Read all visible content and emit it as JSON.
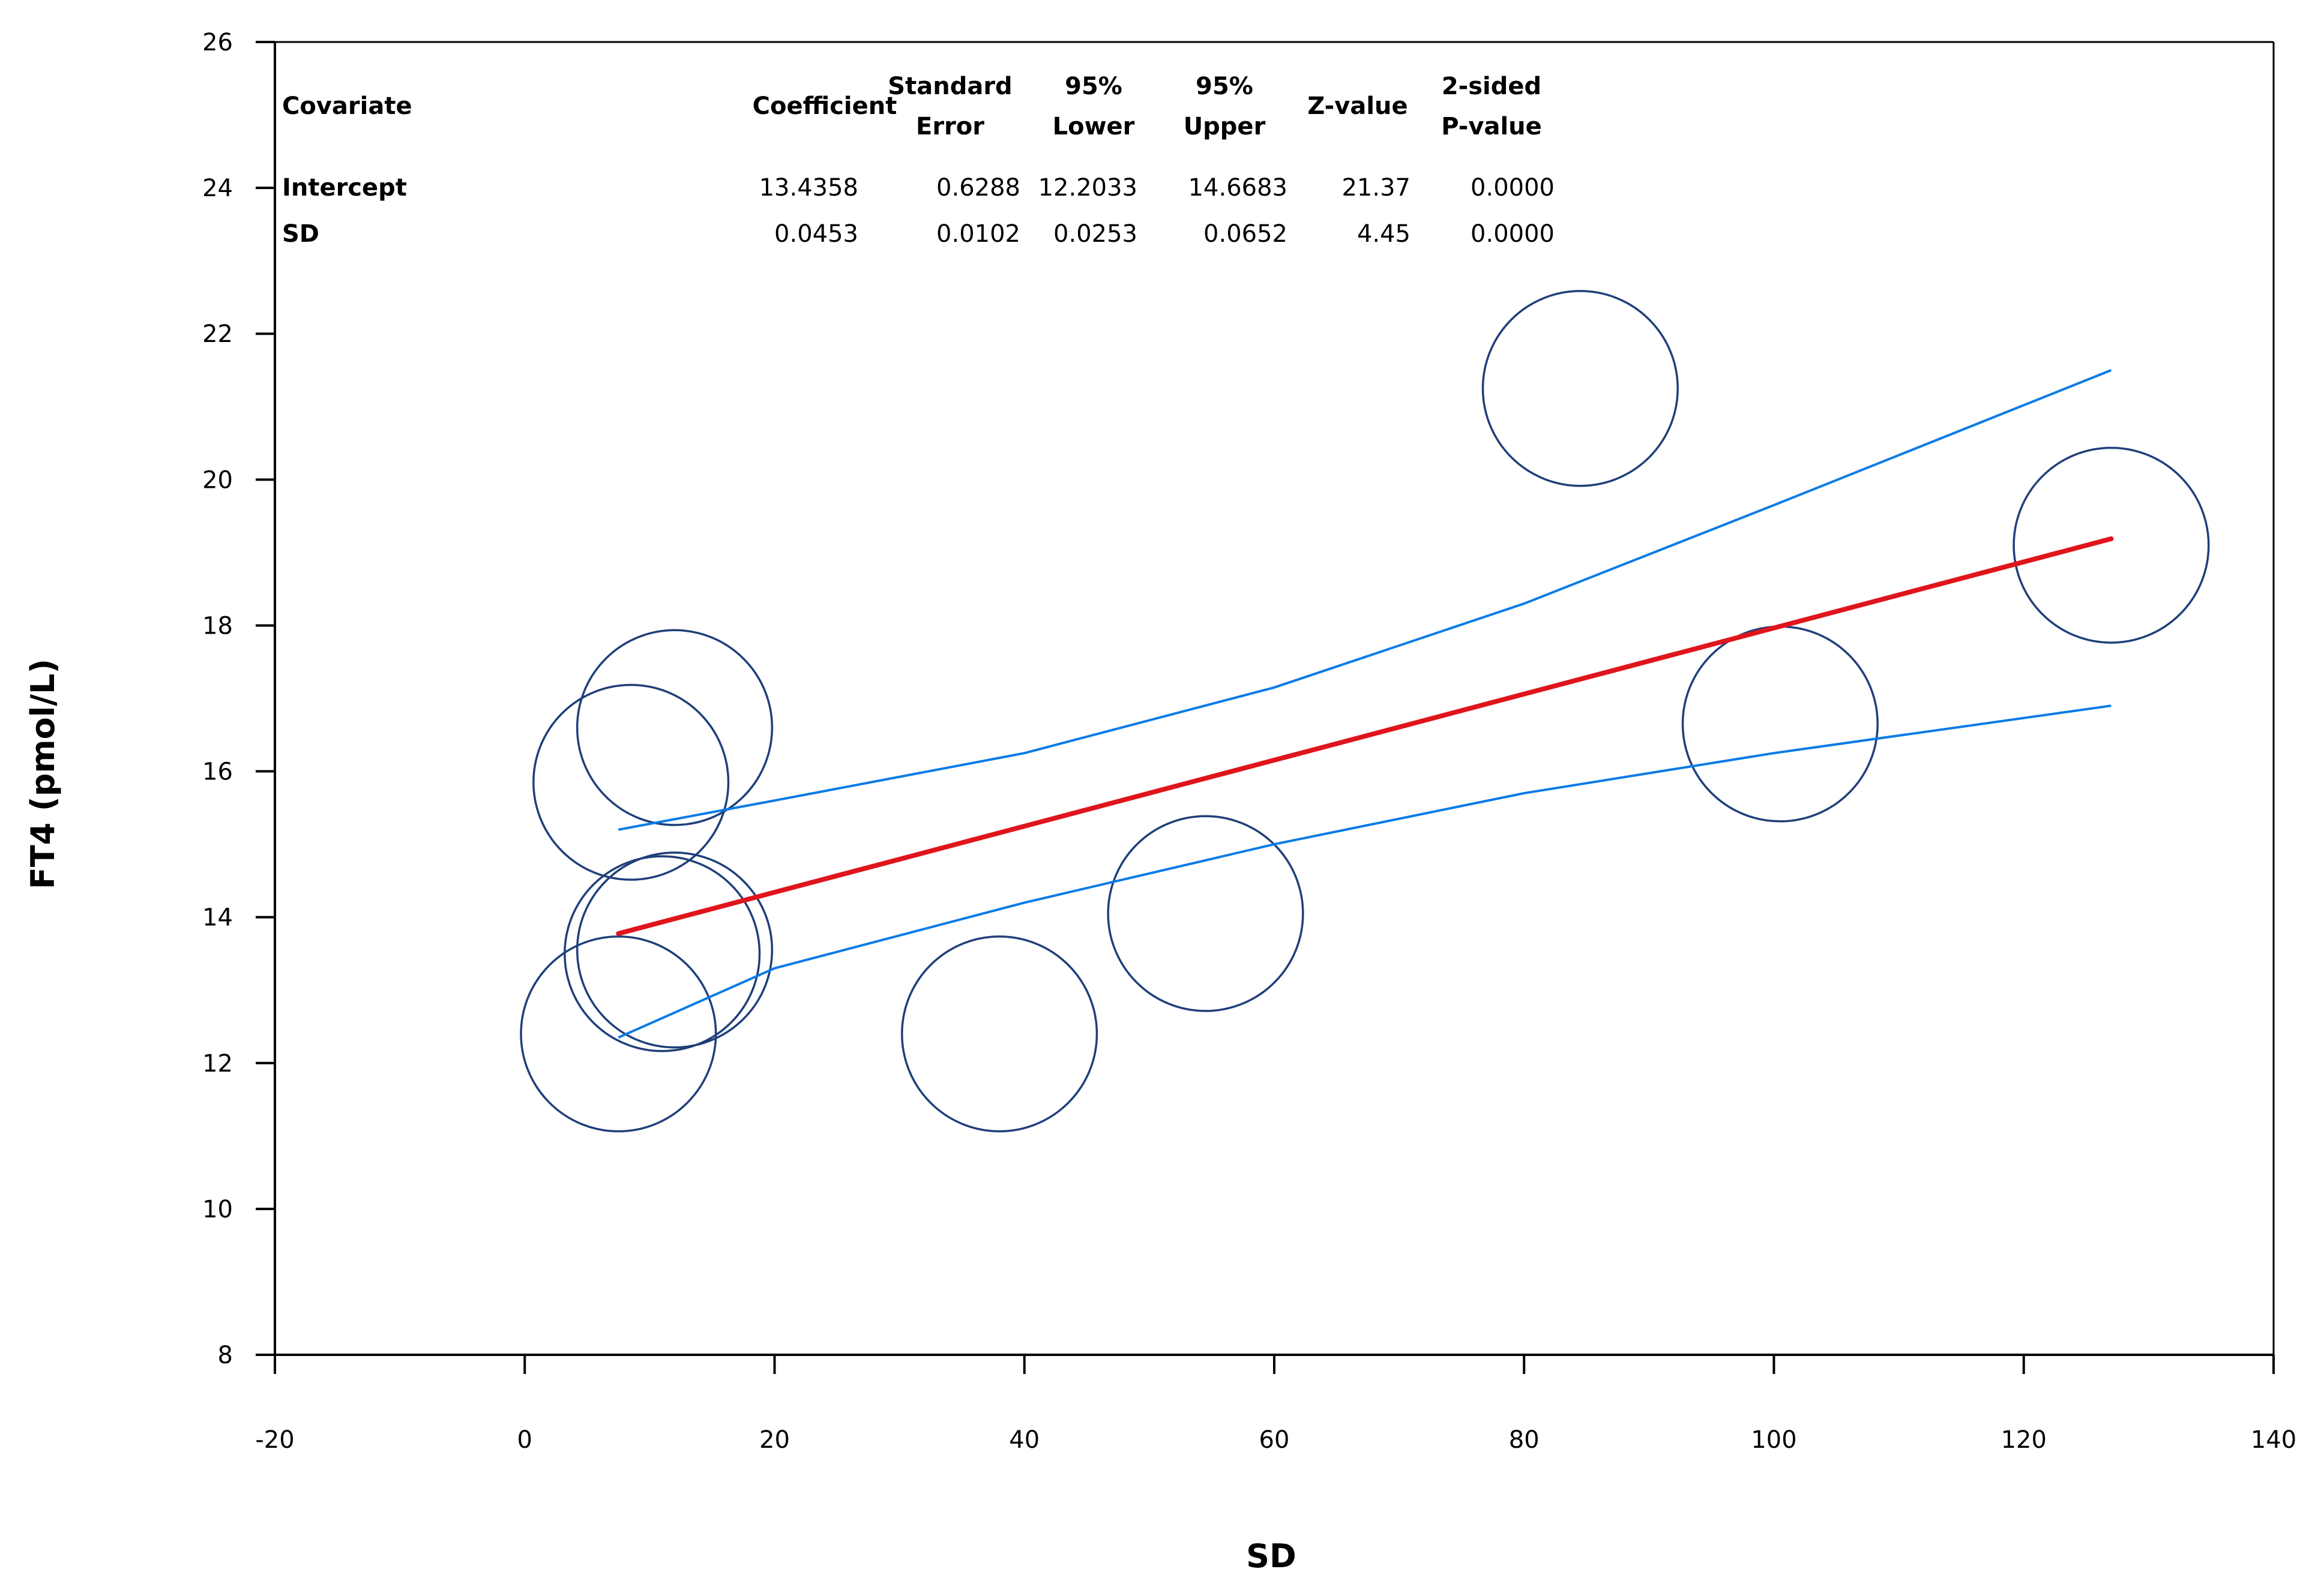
{
  "chart_data": {
    "type": "scatter",
    "title": "",
    "xlabel": "SD",
    "ylabel": "FT4 (pmol/L)",
    "xlim": [
      -20,
      140
    ],
    "ylim": [
      8,
      26
    ],
    "xticks": [
      -20,
      0,
      20,
      40,
      60,
      80,
      100,
      120,
      140
    ],
    "yticks": [
      8,
      10,
      12,
      14,
      16,
      18,
      20,
      22,
      24,
      26
    ],
    "grid": false,
    "points": [
      {
        "x": 8.5,
        "y": 15.85
      },
      {
        "x": 12.0,
        "y": 16.6
      },
      {
        "x": 11.0,
        "y": 13.5
      },
      {
        "x": 12.0,
        "y": 13.55
      },
      {
        "x": 7.5,
        "y": 12.4
      },
      {
        "x": 38.0,
        "y": 12.4
      },
      {
        "x": 54.5,
        "y": 14.05
      },
      {
        "x": 84.5,
        "y": 21.25
      },
      {
        "x": 100.5,
        "y": 16.65
      },
      {
        "x": 127.0,
        "y": 19.1
      }
    ],
    "point_radius_data_x": 7.8,
    "regression": {
      "name": "Fit",
      "color": "#e0151c",
      "x": [
        7.5,
        127.0
      ],
      "intercept": 13.4358,
      "slope": 0.0453
    },
    "ci_upper": {
      "name": "95% Upper",
      "color": "#0a7be6",
      "x": [
        7.5,
        20,
        40,
        60,
        80,
        100,
        127
      ],
      "y": [
        15.2,
        15.6,
        16.25,
        17.15,
        18.3,
        19.65,
        21.5
      ]
    },
    "ci_lower": {
      "name": "95% Lower",
      "color": "#0a7be6",
      "x": [
        7.5,
        20,
        40,
        60,
        80,
        100,
        127
      ],
      "y": [
        12.35,
        13.3,
        14.2,
        15.0,
        15.7,
        16.25,
        16.9
      ]
    },
    "annotation_table": {
      "headers": [
        [
          "Covariate"
        ],
        [
          "Coefficient"
        ],
        [
          "Standard",
          "Error"
        ],
        [
          "95%",
          "Lower"
        ],
        [
          "95%",
          "Upper"
        ],
        [
          "Z-value"
        ],
        [
          "2-sided",
          "P-value"
        ]
      ],
      "rows": [
        [
          "Intercept",
          "13.4358",
          "0.6288",
          "12.2033",
          "14.6683",
          "21.37",
          "0.0000"
        ],
        [
          "SD",
          "0.0453",
          "0.0102",
          "0.0253",
          "0.0652",
          "4.45",
          "0.0000"
        ]
      ]
    },
    "colors": {
      "axis": "#000000",
      "circle": "#1f3f7a",
      "regression": "#e0151c",
      "ci": "#0a7be6"
    }
  }
}
